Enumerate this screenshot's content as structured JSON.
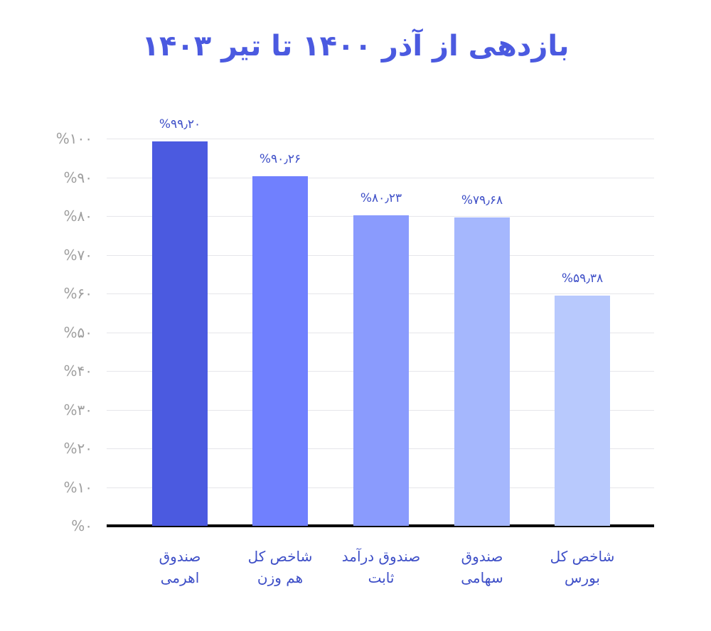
{
  "title": "بازدهی از آذر ۱۴۰۰ تا تیر ۱۴۰۳",
  "y_ticks": [
    "%۰",
    "%۱۰",
    "%۲۰",
    "%۳۰",
    "%۴۰",
    "%۵۰",
    "%۶۰",
    "%۷۰",
    "%۸۰",
    "%۹۰",
    "%۱۰۰"
  ],
  "bars": [
    {
      "label_line1": "صندوق",
      "label_line2": "اهرمی",
      "value_label": "%۹۹٫۲۰",
      "color": "#4b5ae0"
    },
    {
      "label_line1": "شاخص کل",
      "label_line2": "هم وزن",
      "value_label": "%۹۰٫۲۶",
      "color": "#7080fe"
    },
    {
      "label_line1": "صندوق درآمد",
      "label_line2": "ثابت",
      "value_label": "%۸۰٫۲۳",
      "color": "#8a9bfd"
    },
    {
      "label_line1": "صندوق",
      "label_line2": "سهامی",
      "value_label": "%۷۹٫۶۸",
      "color": "#a5b7fd"
    },
    {
      "label_line1": "شاخص کل",
      "label_line2": "بورس",
      "value_label": "%۵۹٫۳۸",
      "color": "#b8c9fd"
    }
  ],
  "chart_data": {
    "type": "bar",
    "title": "بازدهی از آذر ۱۴۰۰ تا تیر ۱۴۰۳",
    "categories": [
      "صندوق اهرمی",
      "شاخص کل هم وزن",
      "صندوق درآمد ثابت",
      "صندوق سهامی",
      "شاخص کل بورس"
    ],
    "values": [
      99.2,
      90.26,
      80.23,
      79.68,
      59.38
    ],
    "value_labels": [
      "%۹۹٫۲۰",
      "%۹۰٫۲۶",
      "%۸۰٫۲۳",
      "%۷۹٫۶۸",
      "%۵۹٫۳۸"
    ],
    "colors": [
      "#4b5ae0",
      "#7080fe",
      "#8a9bfd",
      "#a5b7fd",
      "#b8c9fd"
    ],
    "xlabel": "",
    "ylabel": "",
    "ylim": [
      0,
      100
    ],
    "y_tick_step": 10,
    "y_unit": "%",
    "grid": true,
    "legend": null
  }
}
